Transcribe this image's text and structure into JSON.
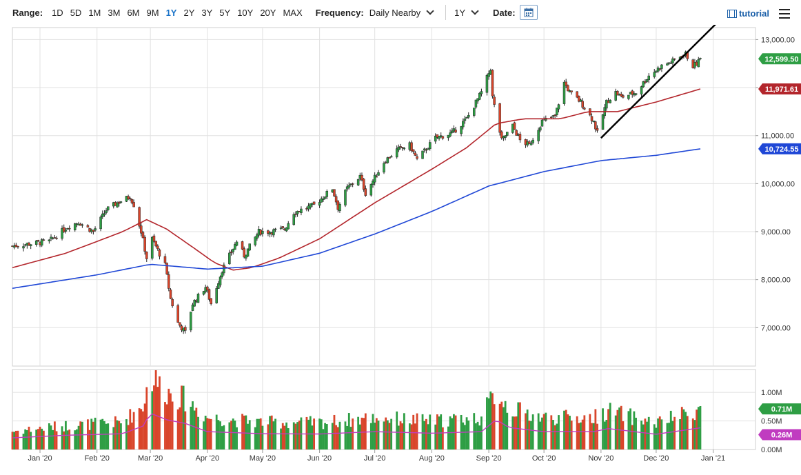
{
  "toolbar": {
    "range_label": "Range:",
    "ranges": [
      "1D",
      "5D",
      "1M",
      "3M",
      "6M",
      "9M",
      "1Y",
      "2Y",
      "3Y",
      "5Y",
      "10Y",
      "20Y",
      "MAX"
    ],
    "active_range": "1Y",
    "frequency_label": "Frequency:",
    "frequency_value": "Daily Nearby",
    "period_value": "1Y",
    "date_label": "Date:",
    "tutorial_label": "tutorial"
  },
  "chart_data": {
    "type": "candlestick",
    "colors": {
      "up": "#2e9e44",
      "down": "#d9452b",
      "ma_fast": "#b3262c",
      "ma_slow": "#1f47d6",
      "vol_avg": "#c03cc0",
      "trendline": "#000000",
      "grid": "#e1e1e1"
    },
    "price_axis": {
      "ticks": [
        "13,000.00",
        "12,000.00",
        "11,000.00",
        "10,000.00",
        "9,000.00",
        "8,000.00",
        "7,000.00"
      ],
      "tick_values": [
        13000,
        12000,
        11000,
        10000,
        9000,
        8000,
        7000
      ],
      "range": [
        6200,
        13250
      ]
    },
    "volume_axis": {
      "ticks": [
        "1.00M",
        "0.50M",
        "0.00M"
      ],
      "tick_values": [
        1000000,
        500000,
        0
      ],
      "range": [
        0,
        1400000
      ]
    },
    "x_labels": [
      "Jan '20",
      "Feb '20",
      "Mar '20",
      "Apr '20",
      "May '20",
      "Jun '20",
      "Jul '20",
      "Aug '20",
      "Sep '20",
      "Oct '20",
      "Nov '20",
      "Dec '20",
      "Jan '21"
    ],
    "x_range": [
      "2019-12-17",
      "2021-01-24"
    ],
    "last_labels": [
      {
        "text": "12,599.50",
        "value": 12599.5,
        "color": "#2e9e44",
        "axis": "price"
      },
      {
        "text": "11,971.61",
        "value": 11971.61,
        "color": "#b3262c",
        "axis": "price"
      },
      {
        "text": "10,724.55",
        "value": 10724.55,
        "color": "#1f47d6",
        "axis": "price"
      },
      {
        "text": "0.71M",
        "value": 710000,
        "color": "#2e9e44",
        "axis": "volume"
      },
      {
        "text": "0.26M",
        "value": 260000,
        "color": "#c03cc0",
        "axis": "volume"
      }
    ],
    "trendline": {
      "start": {
        "date": "2020-11-01",
        "price": 10950
      },
      "end": {
        "date": "2020-12-25",
        "price": 12800
      }
    },
    "price_anchors": [
      [
        "2019-12-17",
        8700
      ],
      [
        "2020-01-06",
        8800
      ],
      [
        "2020-01-16",
        9100
      ],
      [
        "2020-01-22",
        9200
      ],
      [
        "2020-01-30",
        9000
      ],
      [
        "2020-02-06",
        9450
      ],
      [
        "2020-02-12",
        9600
      ],
      [
        "2020-02-19",
        9730
      ],
      [
        "2020-02-21",
        9560
      ],
      [
        "2020-02-25",
        9000
      ],
      [
        "2020-02-28",
        8450
      ],
      [
        "2020-03-02",
        8850
      ],
      [
        "2020-03-09",
        8300
      ],
      [
        "2020-03-12",
        7600
      ],
      [
        "2020-03-16",
        7100
      ],
      [
        "2020-03-20",
        6900
      ],
      [
        "2020-03-24",
        7500
      ],
      [
        "2020-03-31",
        7850
      ],
      [
        "2020-04-03",
        7500
      ],
      [
        "2020-04-09",
        8200
      ],
      [
        "2020-04-17",
        8800
      ],
      [
        "2020-04-21",
        8500
      ],
      [
        "2020-04-29",
        9000
      ],
      [
        "2020-05-05",
        9000
      ],
      [
        "2020-05-13",
        9050
      ],
      [
        "2020-05-18",
        9400
      ],
      [
        "2020-05-29",
        9550
      ],
      [
        "2020-06-08",
        9900
      ],
      [
        "2020-06-11",
        9500
      ],
      [
        "2020-06-16",
        9900
      ],
      [
        "2020-06-23",
        10150
      ],
      [
        "2020-06-26",
        9800
      ],
      [
        "2020-07-06",
        10450
      ],
      [
        "2020-07-13",
        10700
      ],
      [
        "2020-07-20",
        10800
      ],
      [
        "2020-07-24",
        10500
      ],
      [
        "2020-08-03",
        10950
      ],
      [
        "2020-08-12",
        11050
      ],
      [
        "2020-08-20",
        11350
      ],
      [
        "2020-08-28",
        11900
      ],
      [
        "2020-09-02",
        12400
      ],
      [
        "2020-09-03",
        11800
      ],
      [
        "2020-09-08",
        10900
      ],
      [
        "2020-09-14",
        11200
      ],
      [
        "2020-09-18",
        10900
      ],
      [
        "2020-09-23",
        10800
      ],
      [
        "2020-09-30",
        11300
      ],
      [
        "2020-10-07",
        11400
      ],
      [
        "2020-10-12",
        12100
      ],
      [
        "2020-10-15",
        11900
      ],
      [
        "2020-10-21",
        11700
      ],
      [
        "2020-10-28",
        11300
      ],
      [
        "2020-10-30",
        11050
      ],
      [
        "2020-11-04",
        11700
      ],
      [
        "2020-11-09",
        11900
      ],
      [
        "2020-11-12",
        11800
      ],
      [
        "2020-11-20",
        11900
      ],
      [
        "2020-11-27",
        12250
      ],
      [
        "2020-12-04",
        12450
      ],
      [
        "2020-12-10",
        12550
      ],
      [
        "2020-12-14",
        12650
      ],
      [
        "2020-12-17",
        12700
      ],
      [
        "2020-12-21",
        12450
      ],
      [
        "2020-12-23",
        12500
      ],
      [
        "2020-12-25",
        12599.5
      ]
    ],
    "ma_fast_anchors": [
      [
        "2019-12-17",
        8250
      ],
      [
        "2020-01-15",
        8550
      ],
      [
        "2020-02-15",
        9000
      ],
      [
        "2020-02-28",
        9250
      ],
      [
        "2020-03-10",
        9050
      ],
      [
        "2020-03-25",
        8650
      ],
      [
        "2020-04-05",
        8350
      ],
      [
        "2020-04-15",
        8200
      ],
      [
        "2020-04-25",
        8250
      ],
      [
        "2020-05-10",
        8450
      ],
      [
        "2020-06-01",
        8850
      ],
      [
        "2020-07-01",
        9600
      ],
      [
        "2020-08-01",
        10300
      ],
      [
        "2020-08-20",
        10750
      ],
      [
        "2020-09-05",
        11250
      ],
      [
        "2020-09-20",
        11350
      ],
      [
        "2020-10-10",
        11350
      ],
      [
        "2020-10-25",
        11500
      ],
      [
        "2020-11-10",
        11500
      ],
      [
        "2020-12-01",
        11700
      ],
      [
        "2020-12-25",
        11971.61
      ]
    ],
    "ma_slow_anchors": [
      [
        "2019-12-17",
        7820
      ],
      [
        "2020-02-01",
        8100
      ],
      [
        "2020-03-01",
        8320
      ],
      [
        "2020-04-01",
        8220
      ],
      [
        "2020-05-01",
        8280
      ],
      [
        "2020-06-01",
        8550
      ],
      [
        "2020-07-01",
        8950
      ],
      [
        "2020-08-01",
        9420
      ],
      [
        "2020-09-01",
        9950
      ],
      [
        "2020-10-01",
        10250
      ],
      [
        "2020-11-01",
        10480
      ],
      [
        "2020-12-01",
        10590
      ],
      [
        "2020-12-25",
        10724.55
      ]
    ],
    "volume_anchors": [
      [
        "2019-12-17",
        320000
      ],
      [
        "2020-01-15",
        420000
      ],
      [
        "2020-02-15",
        480000
      ],
      [
        "2020-02-26",
        780000
      ],
      [
        "2020-03-01",
        1280000
      ],
      [
        "2020-03-10",
        1020000
      ],
      [
        "2020-03-20",
        880000
      ],
      [
        "2020-04-01",
        560000
      ],
      [
        "2020-05-01",
        480000
      ],
      [
        "2020-06-01",
        470000
      ],
      [
        "2020-07-01",
        560000
      ],
      [
        "2020-08-01",
        500000
      ],
      [
        "2020-08-28",
        560000
      ],
      [
        "2020-09-05",
        1030000
      ],
      [
        "2020-09-12",
        720000
      ],
      [
        "2020-10-01",
        560000
      ],
      [
        "2020-10-28",
        560000
      ],
      [
        "2020-11-05",
        680000
      ],
      [
        "2020-12-01",
        460000
      ],
      [
        "2020-12-25",
        710000
      ]
    ]
  }
}
